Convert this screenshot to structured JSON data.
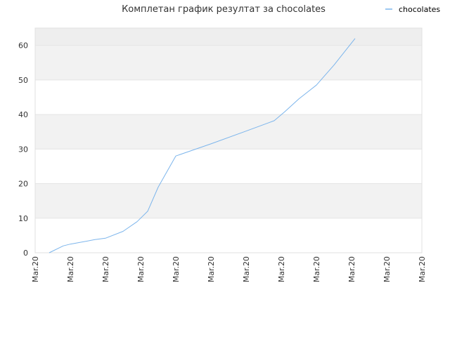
{
  "chart_data": {
    "type": "line",
    "title": "Комплетан график резултат за chocolates",
    "xlabel": "",
    "ylabel": "",
    "ylim": [
      0,
      65
    ],
    "yticks": [
      0,
      10,
      20,
      30,
      40,
      50,
      60
    ],
    "x_tick_labels": [
      "Mar.20",
      "Mar.20",
      "Mar.20",
      "Mar.20",
      "Mar.20",
      "Mar.20",
      "Mar.20",
      "Mar.20",
      "Mar.20",
      "Mar.20",
      "Mar.20",
      "Mar.20"
    ],
    "grid": "alternating horizontal bands",
    "legend_position": "top-right",
    "series": [
      {
        "name": "chocolates",
        "color": "#7cb5ec",
        "x": [
          0.4,
          0.8,
          1.0,
          1.7,
          2.0,
          2.5,
          2.9,
          3.2,
          3.5,
          4.0,
          5.0,
          6.0,
          6.8,
          7.1,
          7.5,
          8.0,
          8.5,
          9.1
        ],
        "values": [
          0,
          2,
          2.5,
          3.8,
          4.2,
          6.2,
          9,
          12,
          19,
          28,
          31.5,
          35.2,
          38.2,
          40.8,
          44.5,
          48.5,
          54.3,
          62
        ]
      }
    ]
  }
}
